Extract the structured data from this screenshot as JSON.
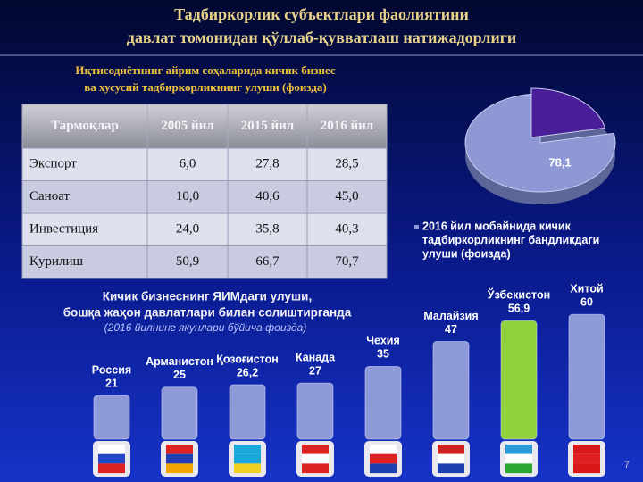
{
  "title": [
    "Тадбиркорлик субъектлари фаолиятини",
    "давлат томонидан қўллаб-қувватлаш натижадорлиги"
  ],
  "table": {
    "caption": [
      "Иқтисодиётнинг айрим соҳаларида кичик бизнес",
      "ва хусусий тадбиркорликнинг улуши (фоизда)"
    ],
    "header": [
      "Тармоқлар",
      "2005 йил",
      "2015 йил",
      "2016 йил"
    ],
    "rows": [
      [
        "Экспорт",
        "6,0",
        "27,8",
        "28,5"
      ],
      [
        "Саноат",
        "10,0",
        "40,6",
        "45,0"
      ],
      [
        "Инвестиция",
        "24,0",
        "35,8",
        "40,3"
      ],
      [
        "Қурилиш",
        "50,9",
        "66,7",
        "70,7"
      ]
    ]
  },
  "chart_data": [
    {
      "type": "pie",
      "title": [
        "2016 йил мобайнида кичик",
        "тадбиркорликнинг бандликдаги",
        "улуши (фоизда)"
      ],
      "values": [
        78.1,
        21.9
      ],
      "value_labels": [
        "78,1",
        null
      ],
      "colors": [
        "#8e98d4",
        "#4a1e98"
      ]
    },
    {
      "type": "bar",
      "title": [
        "Кичик бизнеснинг ЯИМдаги улуши,",
        "бошқа жаҳон давлатлари билан солиштирганда"
      ],
      "subtitle": "(2016 йилнинг якунлари бўйича фоизда)",
      "categories": [
        "Россия",
        "Арманистон",
        "Қозоғистон",
        "Канада",
        "Чехия",
        "Малайзия",
        "Ўзбекистон",
        "Хитой"
      ],
      "values": [
        21,
        25,
        26.2,
        27,
        35,
        47,
        56.9,
        60
      ],
      "value_labels": [
        "21",
        "25",
        "26,2",
        "27",
        "35",
        "47",
        "56,9",
        "60"
      ],
      "colors": [
        "#8e9ad8",
        "#8e9ad8",
        "#8e9ad8",
        "#8e9ad8",
        "#8e9ad8",
        "#8e9ad8",
        "#8fd23a",
        "#8e9ad8"
      ]
    }
  ],
  "page_number": "7"
}
